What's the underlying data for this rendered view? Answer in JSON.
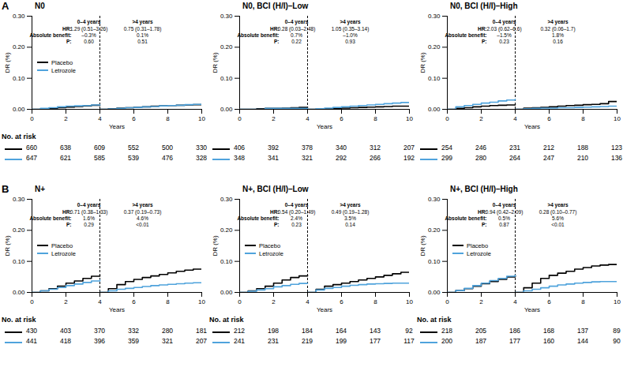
{
  "chart_data": [
    {
      "type": "line",
      "panel": "A",
      "title": "N0",
      "x_label": "Years",
      "y_label": "DR (%)",
      "xlim": [
        0,
        10
      ],
      "xticks": [
        0,
        2,
        4,
        6,
        8,
        10
      ],
      "ylim": [
        0,
        0.3
      ],
      "yticks": [
        {
          "value": 0,
          "label": "0.00"
        },
        {
          "value": 0.1,
          "label": "0.10"
        },
        {
          "value": 0.2,
          "label": "0.20"
        },
        {
          "value": 0.3,
          "label": "0.30"
        }
      ],
      "landmark": 4,
      "legend": "left",
      "annotations": {
        "columns": [
          "0–4 years",
          ">4 years"
        ],
        "rows": [
          {
            "label": "HR:",
            "values": [
              "1.29 (0.51–3.26)",
              "0.75 (0.31–1.78)"
            ]
          },
          {
            "label": "Absolute benefit:",
            "values": [
              "–0.3%",
              "0.1%"
            ]
          },
          {
            "label": "P:",
            "values": [
              "0.60",
              "0.51"
            ]
          }
        ]
      },
      "at_risk_label": "No. at risk",
      "at_risk_times": [
        0,
        2,
        4,
        6,
        8,
        10
      ],
      "x": [
        0,
        0.5,
        1,
        1.5,
        2,
        2.5,
        3,
        3.5,
        4,
        4,
        4,
        4.5,
        5,
        5.5,
        6,
        6.5,
        7,
        7.5,
        8,
        8.5,
        9,
        9.5,
        10
      ],
      "series": [
        {
          "name": "Placebo",
          "color": "#000000",
          "values": [
            0,
            0.001,
            0.003,
            0.005,
            0.007,
            0.009,
            0.011,
            0.013,
            0.014,
            null,
            0,
            0.002,
            0.004,
            0.005,
            0.007,
            0.008,
            0.01,
            0.011,
            0.012,
            0.013,
            0.014,
            0.015,
            0.015
          ],
          "at_risk": [
            660,
            638,
            609,
            552,
            500,
            330
          ]
        },
        {
          "name": "Letrozole",
          "color": "#4fa3dc",
          "values": [
            0,
            0.003,
            0.005,
            0.008,
            0.01,
            0.011,
            0.012,
            0.014,
            0.015,
            null,
            0,
            0.001,
            0.003,
            0.005,
            0.006,
            0.008,
            0.009,
            0.011,
            0.012,
            0.013,
            0.015,
            0.016,
            0.017
          ],
          "at_risk": [
            647,
            621,
            585,
            539,
            476,
            328
          ]
        }
      ]
    },
    {
      "type": "line",
      "title": "N0, BCI (H/I)–Low",
      "x_label": "Years",
      "y_label": "DR (%)",
      "xlim": [
        0,
        10
      ],
      "xticks": [
        0,
        2,
        4,
        6,
        8,
        10
      ],
      "ylim": [
        0,
        0.3
      ],
      "yticks": [
        {
          "value": 0,
          "label": "0.00"
        },
        {
          "value": 0.1,
          "label": "0.10"
        },
        {
          "value": 0.2,
          "label": "0.20"
        },
        {
          "value": 0.3,
          "label": "0.30"
        }
      ],
      "landmark": 4,
      "annotations": {
        "columns": [
          "0–4 years",
          ">4 years"
        ],
        "rows": [
          {
            "label": "HR:",
            "values": [
              "0.28 (0.03–2.48)",
              "1.05 (0.35–3.14)"
            ]
          },
          {
            "label": "Absolute benefit:",
            "values": [
              "0.7%",
              "–1.0%"
            ]
          },
          {
            "label": "P:",
            "values": [
              "0.22",
              "0.93"
            ]
          }
        ]
      },
      "at_risk_times": [
        0,
        2,
        4,
        6,
        8,
        10
      ],
      "x": [
        0,
        0.5,
        1,
        1.5,
        2,
        2.5,
        3,
        3.5,
        4,
        4,
        4,
        4.5,
        5,
        5.5,
        6,
        6.5,
        7,
        7.5,
        8,
        8.5,
        9,
        9.5,
        10
      ],
      "series": [
        {
          "name": "Placebo",
          "color": "#000000",
          "values": [
            0,
            0,
            0.002,
            0.003,
            0.003,
            0.004,
            0.005,
            0.006,
            0.007,
            null,
            0,
            0.001,
            0.002,
            0.003,
            0.004,
            0.005,
            0.006,
            0.007,
            0.008,
            0.009,
            0.01,
            0.01,
            0.01
          ],
          "at_risk": [
            406,
            392,
            378,
            340,
            312,
            207
          ]
        },
        {
          "name": "Letrozole",
          "color": "#4fa3dc",
          "values": [
            0,
            0,
            0,
            0.003,
            0.003,
            0.003,
            0.003,
            0.003,
            0.003,
            null,
            0,
            0.002,
            0.004,
            0.006,
            0.008,
            0.01,
            0.012,
            0.014,
            0.016,
            0.018,
            0.02,
            0.022,
            0.022
          ],
          "at_risk": [
            348,
            341,
            321,
            292,
            266,
            192
          ]
        }
      ]
    },
    {
      "type": "line",
      "title": "N0, BCI (H/I)–High",
      "x_label": "Years",
      "y_label": "DR (%)",
      "xlim": [
        0,
        10
      ],
      "xticks": [
        0,
        2,
        4,
        6,
        8,
        10
      ],
      "ylim": [
        0,
        0.3
      ],
      "yticks": [
        {
          "value": 0,
          "label": "0.00"
        },
        {
          "value": 0.1,
          "label": "0.10"
        },
        {
          "value": 0.2,
          "label": "0.20"
        },
        {
          "value": 0.3,
          "label": "0.30"
        }
      ],
      "landmark": 4,
      "annotations": {
        "columns": [
          "0–4 years",
          ">4 years"
        ],
        "rows": [
          {
            "label": "HR:",
            "values": [
              "2.03 (0.62–6.6)",
              "0.32 (0.06–1.7)"
            ]
          },
          {
            "label": "Absolute benefit:",
            "values": [
              "–1.5%",
              "1.8%"
            ]
          },
          {
            "label": "P:",
            "values": [
              "0.23",
              "0.16"
            ]
          }
        ]
      },
      "at_risk_times": [
        0,
        2,
        4,
        6,
        8,
        10
      ],
      "x": [
        0,
        0.5,
        1,
        1.5,
        2,
        2.5,
        3,
        3.5,
        4,
        4,
        4,
        4.5,
        5,
        5.5,
        6,
        6.5,
        7,
        7.5,
        8,
        8.5,
        9,
        9.5,
        10
      ],
      "series": [
        {
          "name": "Placebo",
          "color": "#000000",
          "values": [
            0,
            0.003,
            0.005,
            0.008,
            0.01,
            0.012,
            0.013,
            0.014,
            0.015,
            null,
            0,
            0.004,
            0.005,
            0.006,
            0.008,
            0.01,
            0.012,
            0.013,
            0.015,
            0.016,
            0.018,
            0.025,
            0.025
          ],
          "at_risk": [
            254,
            246,
            231,
            212,
            188,
            123
          ]
        },
        {
          "name": "Letrozole",
          "color": "#4fa3dc",
          "values": [
            0,
            0.008,
            0.012,
            0.016,
            0.02,
            0.023,
            0.027,
            0.03,
            0.032,
            null,
            0,
            0.002,
            0.003,
            0.004,
            0.004,
            0.005,
            0.005,
            0.006,
            0.007,
            0.008,
            0.009,
            0.01,
            0.01
          ],
          "at_risk": [
            299,
            280,
            264,
            247,
            210,
            136
          ]
        }
      ]
    },
    {
      "type": "line",
      "panel": "B",
      "title": "N+",
      "x_label": "Years",
      "y_label": "DR (%)",
      "xlim": [
        0,
        10
      ],
      "xticks": [
        0,
        2,
        4,
        6,
        8,
        10
      ],
      "ylim": [
        0,
        0.3
      ],
      "yticks": [
        {
          "value": 0,
          "label": "0.00"
        },
        {
          "value": 0.1,
          "label": "0.10"
        },
        {
          "value": 0.2,
          "label": "0.20"
        },
        {
          "value": 0.3,
          "label": "0.30"
        }
      ],
      "landmark": 4,
      "legend": "left",
      "annotations": {
        "columns": [
          "0–4 years",
          ">4 years"
        ],
        "rows": [
          {
            "label": "HR:",
            "values": [
              "0.71 (0.38–1.33)",
              "0.37 (0.19–0.73)"
            ]
          },
          {
            "label": "Absolute benefit:",
            "values": [
              "1.6%",
              "4.6%"
            ]
          },
          {
            "label": "P:",
            "values": [
              "0.29",
              "<0.01"
            ]
          }
        ]
      },
      "at_risk_label": "No. at risk",
      "at_risk_times": [
        0,
        2,
        4,
        6,
        8,
        10
      ],
      "x": [
        0,
        0.5,
        1,
        1.5,
        2,
        2.5,
        3,
        3.5,
        4,
        4,
        4,
        4.5,
        5,
        5.5,
        6,
        6.5,
        7,
        7.5,
        8,
        8.5,
        9,
        9.5,
        10
      ],
      "series": [
        {
          "name": "Placebo",
          "color": "#000000",
          "values": [
            0,
            0.005,
            0.012,
            0.02,
            0.03,
            0.037,
            0.045,
            0.052,
            0.055,
            null,
            0,
            0.012,
            0.025,
            0.035,
            0.042,
            0.048,
            0.053,
            0.058,
            0.063,
            0.068,
            0.072,
            0.075,
            0.075
          ],
          "at_risk": [
            430,
            403,
            370,
            332,
            280,
            181
          ]
        },
        {
          "name": "Letrozole",
          "color": "#4fa3dc",
          "values": [
            0,
            0.005,
            0.01,
            0.016,
            0.022,
            0.027,
            0.032,
            0.037,
            0.04,
            null,
            0,
            0.005,
            0.01,
            0.013,
            0.016,
            0.019,
            0.022,
            0.024,
            0.026,
            0.028,
            0.03,
            0.031,
            0.031
          ],
          "at_risk": [
            441,
            418,
            396,
            359,
            321,
            207
          ]
        }
      ]
    },
    {
      "type": "line",
      "title": "N+, BCI (H/I)–Low",
      "x_label": "Years",
      "y_label": "DR (%)",
      "xlim": [
        0,
        10
      ],
      "xticks": [
        0,
        2,
        4,
        6,
        8,
        10
      ],
      "ylim": [
        0,
        0.3
      ],
      "yticks": [
        {
          "value": 0,
          "label": "0.00"
        },
        {
          "value": 0.1,
          "label": "0.10"
        },
        {
          "value": 0.2,
          "label": "0.20"
        },
        {
          "value": 0.3,
          "label": "0.30"
        }
      ],
      "landmark": 4,
      "legend": "left",
      "annotations": {
        "columns": [
          "0–4 years",
          ">4 years"
        ],
        "rows": [
          {
            "label": "HR:",
            "values": [
              "0.54 (0.20–1.49)",
              "0.49 (0.19–1.28)"
            ]
          },
          {
            "label": "Absolute benefit:",
            "values": [
              "2.4%",
              "3.5%"
            ]
          },
          {
            "label": "P:",
            "values": [
              "0.23",
              "0.14"
            ]
          }
        ]
      },
      "at_risk_label": "No. at risk",
      "at_risk_times": [
        0,
        2,
        4,
        6,
        8,
        10
      ],
      "x": [
        0,
        0.5,
        1,
        1.5,
        2,
        2.5,
        3,
        3.5,
        4,
        4,
        4,
        4.5,
        5,
        5.5,
        6,
        6.5,
        7,
        7.5,
        8,
        8.5,
        9,
        9.5,
        10
      ],
      "series": [
        {
          "name": "Placebo",
          "color": "#000000",
          "values": [
            0,
            0.005,
            0.012,
            0.02,
            0.03,
            0.04,
            0.048,
            0.053,
            0.055,
            null,
            0,
            0.01,
            0.02,
            0.025,
            0.03,
            0.035,
            0.04,
            0.045,
            0.05,
            0.055,
            0.06,
            0.065,
            0.065
          ],
          "at_risk": [
            212,
            198,
            184,
            164,
            143,
            92
          ]
        },
        {
          "name": "Letrozole",
          "color": "#4fa3dc",
          "values": [
            0,
            0.004,
            0.008,
            0.012,
            0.018,
            0.022,
            0.026,
            0.029,
            0.03,
            null,
            0,
            0.008,
            0.013,
            0.016,
            0.02,
            0.023,
            0.025,
            0.027,
            0.028,
            0.029,
            0.03,
            0.03,
            0.03
          ],
          "at_risk": [
            241,
            231,
            219,
            199,
            177,
            117
          ]
        }
      ]
    },
    {
      "type": "line",
      "title": "N+, BCI (H/I)–High",
      "x_label": "Years",
      "y_label": "DR (%)",
      "xlim": [
        0,
        10
      ],
      "xticks": [
        0,
        2,
        4,
        6,
        8,
        10
      ],
      "ylim": [
        0,
        0.3
      ],
      "yticks": [
        {
          "value": 0,
          "label": "0.00"
        },
        {
          "value": 0.1,
          "label": "0.10"
        },
        {
          "value": 0.2,
          "label": "0.20"
        },
        {
          "value": 0.3,
          "label": "0.30"
        }
      ],
      "landmark": 4,
      "legend": "left",
      "annotations": {
        "columns": [
          "0–4 years",
          ">4 years"
        ],
        "rows": [
          {
            "label": "HR:",
            "values": [
              "0.94 (0.42–2.09)",
              "0.28 (0.10–0.77)"
            ]
          },
          {
            "label": "Absolute benefit:",
            "values": [
              "0.5%",
              "5.6%"
            ]
          },
          {
            "label": "P:",
            "values": [
              "0.87",
              "<0.01"
            ]
          }
        ]
      },
      "at_risk_label": "No. at risk",
      "at_risk_times": [
        0,
        2,
        4,
        6,
        8,
        10
      ],
      "x": [
        0,
        0.5,
        1,
        1.5,
        2,
        2.5,
        3,
        3.5,
        4,
        4,
        4,
        4.5,
        5,
        5.5,
        6,
        6.5,
        7,
        7.5,
        8,
        8.5,
        9,
        9.5,
        10
      ],
      "series": [
        {
          "name": "Placebo",
          "color": "#000000",
          "values": [
            0,
            0.006,
            0.012,
            0.02,
            0.028,
            0.035,
            0.042,
            0.05,
            0.055,
            null,
            0,
            0.015,
            0.03,
            0.045,
            0.055,
            0.062,
            0.068,
            0.075,
            0.08,
            0.085,
            0.088,
            0.09,
            0.09
          ],
          "at_risk": [
            218,
            205,
            186,
            168,
            137,
            89
          ]
        },
        {
          "name": "Letrozole",
          "color": "#4fa3dc",
          "values": [
            0,
            0.006,
            0.013,
            0.022,
            0.03,
            0.038,
            0.045,
            0.052,
            0.056,
            null,
            0,
            0.005,
            0.01,
            0.015,
            0.02,
            0.024,
            0.027,
            0.03,
            0.032,
            0.034,
            0.035,
            0.035,
            0.035
          ],
          "at_risk": [
            200,
            187,
            177,
            160,
            144,
            90
          ]
        }
      ]
    }
  ]
}
